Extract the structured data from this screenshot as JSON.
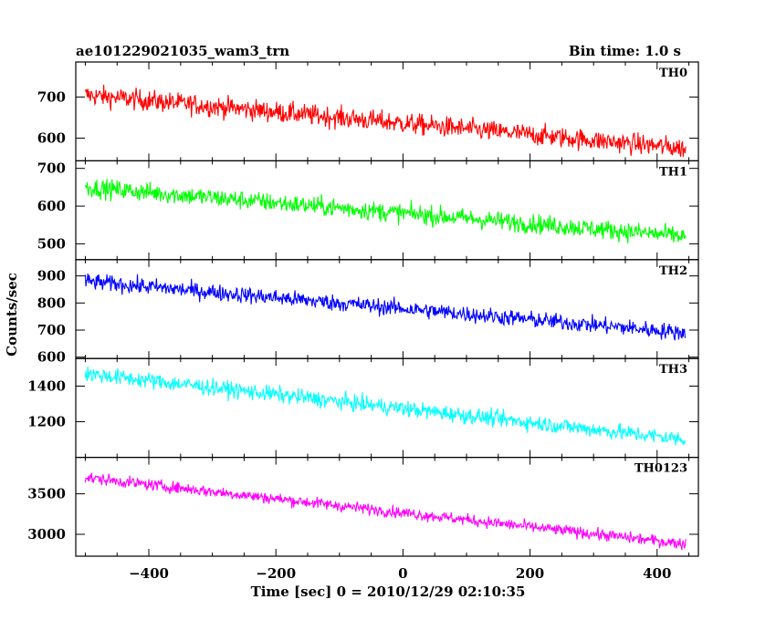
{
  "header": {
    "title": "ae101229021035_wam3_trn",
    "bin_time": "Bin time: 1.0 s"
  },
  "chart_data": {
    "type": "line",
    "xlabel": "Time [sec] 0 = 2010/12/29 02:10:35",
    "ylabel": "Counts/sec",
    "xlim": [
      -515,
      465
    ],
    "x_range": [
      -500,
      445
    ],
    "x_ticks": [
      -400,
      -200,
      0,
      200,
      400
    ],
    "x_tick_labels": [
      "−400",
      "−200",
      "0",
      "200",
      "400"
    ],
    "panels": [
      {
        "name": "TH0",
        "color": "#ff0000",
        "ylim": [
          545,
          785
        ],
        "y_ticks": [
          600,
          700
        ],
        "y_tick_labels": [
          "600",
          "700"
        ],
        "start": 705,
        "end": 575,
        "noise": 25
      },
      {
        "name": "TH1",
        "color": "#00ff00",
        "ylim": [
          458,
          720
        ],
        "y_ticks": [
          500,
          600,
          700
        ],
        "y_tick_labels": [
          "500",
          "600",
          "700"
        ],
        "start": 650,
        "end": 520,
        "noise": 25
      },
      {
        "name": "TH2",
        "color": "#0000ff",
        "ylim": [
          595,
          960
        ],
        "y_ticks": [
          600,
          700,
          800,
          900
        ],
        "y_tick_labels": [
          "600",
          "700",
          "800",
          "900"
        ],
        "start": 880,
        "end": 690,
        "noise": 30
      },
      {
        "name": "TH3",
        "color": "#00ffff",
        "ylim": [
          1000,
          1555
        ],
        "y_ticks": [
          1200,
          1400
        ],
        "y_tick_labels": [
          "1200",
          "1400"
        ],
        "start": 1470,
        "end": 1100,
        "noise": 45
      },
      {
        "name": "TH0123",
        "color": "#ff00ff",
        "ylim": [
          2730,
          3950
        ],
        "y_ticks": [
          3000,
          3500
        ],
        "y_tick_labels": [
          "3000",
          "3500"
        ],
        "start": 3700,
        "end": 2880,
        "noise": 70
      }
    ]
  }
}
